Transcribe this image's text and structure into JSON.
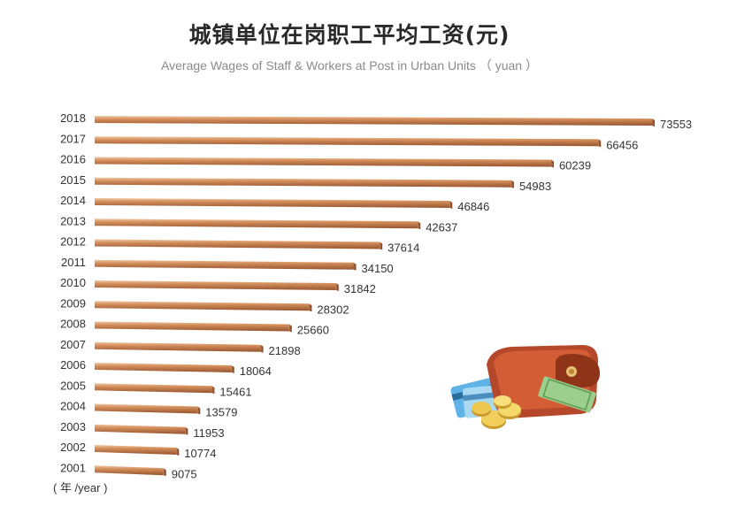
{
  "title_cn": "城镇单位在岗职工平均工资(元)",
  "title_en": "Average Wages of Staff & Workers at Post in Urban Units （ yuan ）",
  "unit_note": "( 年 /year )",
  "colors": {
    "bar_top": "#e8b48c",
    "bar_mid": "#c9804f",
    "bar_bottom": "#9a5a33",
    "bar_side": "#7a4426"
  },
  "chart_data": {
    "type": "bar",
    "orientation": "horizontal",
    "categories": [
      "2018",
      "2017",
      "2016",
      "2015",
      "2014",
      "2013",
      "2012",
      "2011",
      "2010",
      "2009",
      "2008",
      "2007",
      "2006",
      "2005",
      "2004",
      "2003",
      "2002",
      "2001"
    ],
    "values": [
      73553,
      66456,
      60239,
      54983,
      46846,
      42637,
      37614,
      34150,
      31842,
      28302,
      25660,
      21898,
      18064,
      15461,
      13579,
      11953,
      10774,
      9075
    ],
    "value_labels": [
      "73553",
      "66456",
      "60239",
      "54983",
      "46846",
      "42637",
      "37614",
      "34150",
      "31842",
      "28302",
      "25660",
      "21898",
      "18064",
      "15461",
      "13579",
      "11953",
      "10774",
      "9075"
    ],
    "xlim": [
      0,
      73553
    ],
    "grid": false,
    "legend": "none"
  }
}
